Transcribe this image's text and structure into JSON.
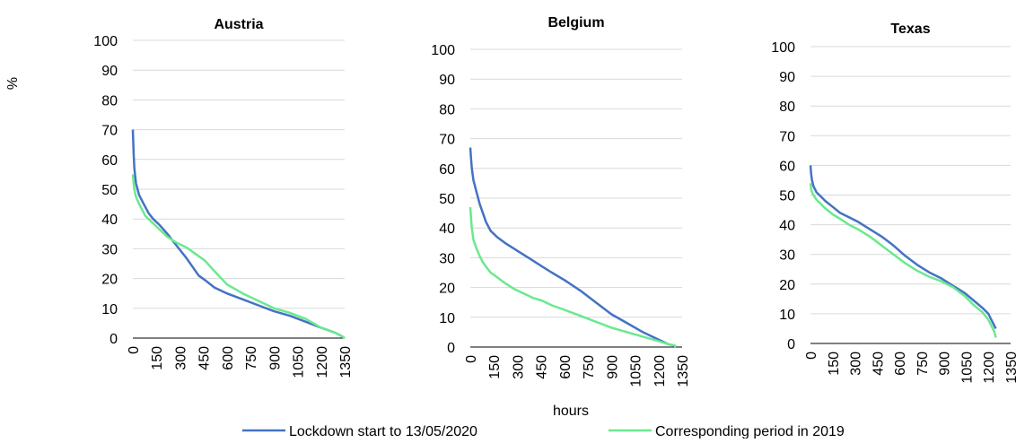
{
  "figure": {
    "y_unit_label": "%",
    "x_label": "hours"
  },
  "legend": {
    "lockdown_label": "Lockdown start to 13/05/2020",
    "period2019_label": "Corresponding period in 2019"
  },
  "colors": {
    "lockdown": "#4472C4",
    "period2019": "#6AE98E",
    "grid": "#D9D9D9",
    "axis": "#000000"
  },
  "chart_data": [
    {
      "type": "line",
      "title": "Austria",
      "xlabel": "",
      "ylabel": "%",
      "xlim": [
        0,
        1350
      ],
      "ylim": [
        0,
        100
      ],
      "x_ticks": [
        0,
        150,
        300,
        450,
        600,
        750,
        900,
        1050,
        1200,
        1350
      ],
      "y_ticks": [
        0,
        10,
        20,
        30,
        40,
        50,
        60,
        70,
        80,
        90,
        100
      ],
      "grid": true,
      "series": [
        {
          "name": "Lockdown start to 13/05/2020",
          "x": [
            0,
            5,
            10,
            20,
            40,
            60,
            80,
            100,
            130,
            170,
            220,
            280,
            340,
            380,
            420,
            460,
            520,
            600,
            700,
            800,
            900,
            1000,
            1100,
            1200,
            1280,
            1320,
            1350
          ],
          "y": [
            70,
            62,
            57,
            52,
            48,
            46,
            44,
            42,
            40,
            38,
            35,
            31,
            27,
            24,
            21,
            19.5,
            17,
            15,
            13,
            11,
            9,
            7.5,
            5.5,
            3.5,
            2,
            1,
            0
          ]
        },
        {
          "name": "Corresponding period in 2019",
          "x": [
            0,
            5,
            10,
            20,
            40,
            60,
            80,
            100,
            130,
            170,
            220,
            280,
            340,
            380,
            420,
            460,
            520,
            600,
            700,
            800,
            900,
            1000,
            1100,
            1200,
            1280,
            1320,
            1350
          ],
          "y": [
            55,
            52,
            50,
            47.5,
            45,
            43,
            41,
            40,
            38.5,
            36.5,
            34,
            32,
            30.5,
            29,
            27.5,
            26,
            22.5,
            18,
            15,
            12.5,
            10,
            8.5,
            6.5,
            3.5,
            2,
            1,
            0
          ]
        }
      ]
    },
    {
      "type": "line",
      "title": "Belgium",
      "xlabel": "hours",
      "ylabel": "%",
      "xlim": [
        0,
        1350
      ],
      "ylim": [
        0,
        100
      ],
      "x_ticks": [
        0,
        150,
        300,
        450,
        600,
        750,
        900,
        1050,
        1200,
        1350
      ],
      "y_ticks": [
        0,
        10,
        20,
        30,
        40,
        50,
        60,
        70,
        80,
        90,
        100
      ],
      "grid": true,
      "series": [
        {
          "name": "Lockdown start to 13/05/2020",
          "x": [
            0,
            5,
            10,
            20,
            40,
            60,
            80,
            100,
            130,
            170,
            220,
            280,
            340,
            400,
            460,
            520,
            600,
            700,
            800,
            900,
            1000,
            1100,
            1200,
            1260,
            1300,
            1310
          ],
          "y": [
            67,
            63,
            60,
            56,
            52,
            48,
            45,
            42,
            39,
            37,
            35,
            33,
            31,
            29,
            27,
            25,
            22.5,
            19,
            15,
            11,
            8,
            5,
            2.5,
            1,
            0.5,
            0
          ]
        },
        {
          "name": "Corresponding period in 2019",
          "x": [
            0,
            5,
            10,
            20,
            40,
            60,
            80,
            100,
            130,
            170,
            220,
            280,
            340,
            400,
            460,
            520,
            600,
            700,
            800,
            900,
            1000,
            1100,
            1200,
            1260,
            1300,
            1310
          ],
          "y": [
            47,
            43,
            40,
            36,
            33,
            30.5,
            28.5,
            27,
            25,
            23.5,
            21.5,
            19.5,
            18,
            16.5,
            15.5,
            14,
            12.5,
            10.5,
            8.5,
            6.5,
            5,
            3.5,
            2,
            1,
            0.5,
            0
          ]
        }
      ]
    },
    {
      "type": "line",
      "title": "Texas",
      "xlabel": "",
      "ylabel": "%",
      "xlim": [
        0,
        1350
      ],
      "ylim": [
        0,
        100
      ],
      "x_ticks": [
        0,
        150,
        300,
        450,
        600,
        750,
        900,
        1050,
        1200,
        1350
      ],
      "y_ticks": [
        0,
        10,
        20,
        30,
        40,
        50,
        60,
        70,
        80,
        90,
        100
      ],
      "grid": true,
      "series": [
        {
          "name": "Lockdown start to 13/05/2020",
          "x": [
            0,
            5,
            10,
            20,
            40,
            60,
            80,
            100,
            150,
            200,
            260,
            320,
            400,
            480,
            560,
            640,
            720,
            800,
            880,
            960,
            1040,
            1100,
            1160,
            1200,
            1220,
            1240,
            1250
          ],
          "y": [
            60,
            57,
            55,
            53,
            51,
            50,
            49,
            48,
            46,
            44,
            42.5,
            41,
            38.5,
            36,
            33,
            29.5,
            26.5,
            24,
            22,
            19.5,
            17,
            14.5,
            12,
            10,
            8,
            6,
            5
          ]
        },
        {
          "name": "Corresponding period in 2019",
          "x": [
            0,
            5,
            10,
            20,
            40,
            60,
            80,
            100,
            150,
            200,
            260,
            320,
            400,
            480,
            560,
            640,
            720,
            800,
            880,
            960,
            1040,
            1100,
            1160,
            1200,
            1220,
            1240,
            1250
          ],
          "y": [
            54,
            52,
            51,
            50,
            48.5,
            47.5,
            46.5,
            45.5,
            43.5,
            42,
            40,
            38.5,
            36,
            33,
            30,
            27,
            24.5,
            22.5,
            21,
            19,
            16,
            13,
            10.5,
            8,
            6,
            4,
            2
          ]
        }
      ]
    }
  ]
}
